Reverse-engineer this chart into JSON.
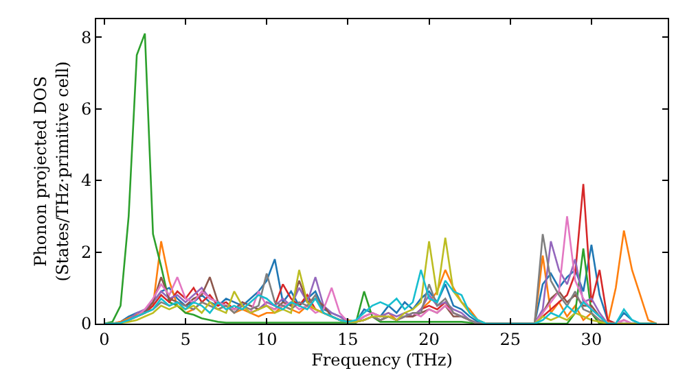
{
  "chart_data": {
    "type": "line",
    "xlabel": "Frequency (THz)",
    "ylabel": "Phonon projected DOS\n(States/THz·primitive cell)",
    "x": [
      0,
      0.5,
      1,
      1.5,
      2,
      2.5,
      3,
      3.5,
      4,
      4.5,
      5,
      5.5,
      6,
      6.5,
      7,
      7.5,
      8,
      8.5,
      9,
      9.5,
      10,
      10.5,
      11,
      11.5,
      12,
      12.5,
      13,
      13.5,
      14,
      14.5,
      15,
      15.5,
      16,
      16.5,
      17,
      17.5,
      18,
      18.5,
      19,
      19.5,
      20,
      20.5,
      21,
      21.5,
      22,
      22.5,
      23,
      23.5,
      24,
      24.5,
      25,
      25.5,
      26,
      26.5,
      27,
      27.5,
      28,
      28.5,
      29,
      29.5,
      30,
      30.5,
      31,
      31.5,
      32,
      32.5,
      33,
      33.5,
      34
    ],
    "xlim": [
      -0.5,
      34.7
    ],
    "xticks": [
      0,
      5,
      10,
      15,
      20,
      25,
      30
    ],
    "ylim": [
      0,
      8.5
    ],
    "yticks": [
      0,
      2,
      4,
      6,
      8
    ],
    "marker": "none",
    "line_style": "solid",
    "series": [
      {
        "color": "#1f77b4",
        "values": [
          0,
          0,
          0.05,
          0.2,
          0.3,
          0.35,
          0.6,
          0.9,
          1.0,
          0.7,
          0.5,
          0.6,
          0.8,
          0.6,
          0.5,
          0.7,
          0.6,
          0.5,
          0.7,
          0.9,
          1.2,
          1.8,
          0.6,
          0.9,
          0.5,
          0.7,
          0.9,
          0.4,
          0.3,
          0.2,
          0.1,
          0.05,
          0.4,
          0.3,
          0.2,
          0.5,
          0.3,
          0.6,
          0.4,
          0.7,
          0.9,
          0.6,
          1.1,
          0.5,
          0.4,
          0.2,
          0.05,
          0,
          0,
          0,
          0,
          0,
          0,
          0,
          1.1,
          1.4,
          1.0,
          1.3,
          1.5,
          0.9,
          2.2,
          0.8,
          0.1,
          0,
          0.3,
          0.1,
          0,
          0,
          0
        ]
      },
      {
        "color": "#ff7f0e",
        "values": [
          0,
          0,
          0.05,
          0.15,
          0.25,
          0.3,
          0.5,
          2.3,
          1.2,
          0.5,
          0.3,
          0.4,
          0.6,
          0.5,
          0.4,
          0.5,
          0.3,
          0.4,
          0.3,
          0.2,
          0.3,
          0.3,
          0.5,
          0.4,
          0.3,
          0.5,
          0.4,
          0.3,
          0.2,
          0.1,
          0.1,
          0.05,
          0.2,
          0.3,
          0.2,
          0.3,
          0.1,
          0.2,
          0.2,
          0.4,
          0.6,
          0.9,
          1.5,
          1.0,
          0.6,
          0.4,
          0.1,
          0,
          0,
          0,
          0,
          0,
          0,
          0,
          1.9,
          0.3,
          0.6,
          0.2,
          0.5,
          0.1,
          0.3,
          0,
          0,
          1.0,
          2.6,
          1.5,
          0.8,
          0.1,
          0
        ]
      },
      {
        "color": "#2ca02c",
        "values": [
          0,
          0.05,
          0.5,
          3.0,
          7.5,
          8.1,
          2.5,
          1.6,
          0.6,
          0.5,
          0.3,
          0.25,
          0.15,
          0.1,
          0.05,
          0.03,
          0.03,
          0.03,
          0.03,
          0.03,
          0.03,
          0.03,
          0.03,
          0.03,
          0.03,
          0.03,
          0.03,
          0.03,
          0.03,
          0.03,
          0.03,
          0.03,
          0.9,
          0.2,
          0.05,
          0.05,
          0.05,
          0.05,
          0.05,
          0.05,
          0.05,
          0.05,
          0.05,
          0.05,
          0.05,
          0.03,
          0,
          0,
          0,
          0,
          0,
          0,
          0,
          0,
          0,
          0,
          0,
          0,
          0.3,
          2.1,
          0.3,
          0,
          0,
          0,
          0,
          0,
          0,
          0,
          0
        ]
      },
      {
        "color": "#d62728",
        "values": [
          null,
          null,
          0.03,
          0.1,
          0.2,
          0.3,
          0.5,
          0.8,
          0.6,
          0.9,
          0.7,
          1.0,
          0.6,
          0.8,
          0.5,
          0.6,
          0.4,
          0.5,
          0.3,
          0.4,
          0.6,
          0.5,
          1.1,
          0.7,
          0.5,
          0.8,
          0.4,
          0.3,
          0.2,
          0.1,
          0.05,
          0.05,
          0.1,
          0.2,
          0.1,
          0.2,
          0.1,
          0.2,
          0.2,
          0.4,
          0.5,
          0.4,
          0.6,
          0.3,
          0.2,
          0.1,
          0,
          0,
          0,
          0,
          0,
          0,
          0,
          0,
          0.2,
          0.4,
          0.6,
          0.8,
          1.4,
          3.9,
          0.6,
          1.5,
          0.1,
          0,
          0.1,
          null,
          null,
          null,
          null
        ]
      },
      {
        "color": "#9467bd",
        "values": [
          null,
          null,
          0.02,
          0.1,
          0.3,
          0.4,
          0.6,
          0.9,
          0.7,
          0.8,
          0.6,
          0.8,
          1.0,
          0.7,
          0.6,
          0.5,
          0.4,
          0.6,
          0.5,
          0.4,
          0.6,
          0.5,
          0.7,
          0.5,
          1.0,
          0.6,
          1.3,
          0.5,
          0.3,
          0.2,
          0.05,
          0.05,
          0.2,
          0.3,
          0.2,
          0.3,
          0.2,
          0.3,
          0.2,
          0.4,
          0.8,
          0.5,
          0.6,
          0.4,
          0.3,
          0.1,
          0,
          0,
          0,
          0,
          0,
          0,
          0,
          0,
          0.4,
          2.3,
          1.5,
          1.1,
          1.8,
          0.6,
          0.7,
          0.3,
          0,
          0,
          0.1,
          0,
          null,
          null,
          null
        ]
      },
      {
        "color": "#8c564b",
        "values": [
          0,
          0,
          0.02,
          0.1,
          0.2,
          0.3,
          0.6,
          1.3,
          0.7,
          0.6,
          0.5,
          0.7,
          0.8,
          1.3,
          0.6,
          0.5,
          0.4,
          0.6,
          0.5,
          0.4,
          0.5,
          0.4,
          0.6,
          0.5,
          1.2,
          0.6,
          0.7,
          0.5,
          0.2,
          0.1,
          0.05,
          0.05,
          0.1,
          0.2,
          0.1,
          0.2,
          0.1,
          0.2,
          0.2,
          0.3,
          0.4,
          0.3,
          0.5,
          0.2,
          0.2,
          0.1,
          0,
          0,
          0,
          0,
          0,
          0,
          0,
          0,
          0.3,
          0.7,
          0.9,
          0.6,
          0.8,
          0.5,
          0.5,
          0.2,
          0,
          0,
          0,
          0,
          0,
          0,
          0
        ]
      },
      {
        "color": "#e377c2",
        "values": [
          null,
          null,
          null,
          0.1,
          0.2,
          0.4,
          0.7,
          1.1,
          0.8,
          1.3,
          0.7,
          0.6,
          0.9,
          0.7,
          0.6,
          0.5,
          0.4,
          0.5,
          0.3,
          0.9,
          0.5,
          0.4,
          0.5,
          0.6,
          0.4,
          0.5,
          0.3,
          0.4,
          1.0,
          0.3,
          0.05,
          0.05,
          0.2,
          0.3,
          0.2,
          0.2,
          0.1,
          0.2,
          0.3,
          0.2,
          0.4,
          0.3,
          0.5,
          0.3,
          0.2,
          0.1,
          0,
          0,
          0,
          0,
          0,
          0,
          0,
          0,
          0.3,
          0.6,
          0.9,
          3.0,
          1.2,
          0.7,
          0.4,
          0.2,
          0,
          0,
          0.1,
          0,
          0,
          null,
          null
        ]
      },
      {
        "color": "#7f7f7f",
        "values": [
          0,
          0,
          0.02,
          0.1,
          0.2,
          0.3,
          0.4,
          0.6,
          0.5,
          0.6,
          0.5,
          0.4,
          0.6,
          0.5,
          0.4,
          0.5,
          0.3,
          0.5,
          0.4,
          0.5,
          1.4,
          0.6,
          0.5,
          0.4,
          0.6,
          0.5,
          0.8,
          0.3,
          0.2,
          0.1,
          0.05,
          0.05,
          0.1,
          0.2,
          0.1,
          0.2,
          0.1,
          0.2,
          0.3,
          0.3,
          1.1,
          0.5,
          0.7,
          0.3,
          0.2,
          0.1,
          0,
          0,
          0,
          0,
          0,
          0,
          0,
          0,
          2.5,
          1.2,
          0.8,
          0.5,
          0.9,
          0.4,
          0.3,
          0.1,
          0,
          0,
          0,
          0,
          0,
          0,
          0
        ]
      },
      {
        "color": "#bcbd22",
        "values": [
          0,
          0,
          0.02,
          0.05,
          0.1,
          0.2,
          0.3,
          0.5,
          0.4,
          0.5,
          0.4,
          0.5,
          0.3,
          0.6,
          0.4,
          0.3,
          0.9,
          0.5,
          0.3,
          0.4,
          0.5,
          0.3,
          0.4,
          0.3,
          1.5,
          0.6,
          0.4,
          0.3,
          0.2,
          0.1,
          0.05,
          0.05,
          0.1,
          0.2,
          0.2,
          0.2,
          0.1,
          0.3,
          0.4,
          0.6,
          2.3,
          0.8,
          2.4,
          0.9,
          0.6,
          0.3,
          0.1,
          0,
          0,
          0,
          0,
          0,
          0,
          0,
          0.2,
          0.1,
          0.2,
          0.1,
          0.3,
          0.2,
          0.1,
          0.05,
          0,
          0,
          0,
          0,
          0,
          0,
          0
        ]
      },
      {
        "color": "#17becf",
        "values": [
          0,
          0,
          0.02,
          0.1,
          0.2,
          0.3,
          0.4,
          0.7,
          0.5,
          0.6,
          0.4,
          0.6,
          0.5,
          0.3,
          0.6,
          0.4,
          0.5,
          0.4,
          0.6,
          0.8,
          0.7,
          0.5,
          0.4,
          0.6,
          0.5,
          0.4,
          0.7,
          0.3,
          0.2,
          0.1,
          0.05,
          0.1,
          0.3,
          0.5,
          0.6,
          0.5,
          0.7,
          0.4,
          0.6,
          1.5,
          0.7,
          0.6,
          1.2,
          0.9,
          0.8,
          0.3,
          0.1,
          0,
          0,
          0,
          0,
          0,
          0,
          0,
          0.1,
          0.3,
          0.2,
          0.5,
          0.3,
          0.6,
          0.4,
          0.2,
          0,
          0,
          0.4,
          0.1,
          0,
          0,
          0
        ]
      }
    ]
  }
}
